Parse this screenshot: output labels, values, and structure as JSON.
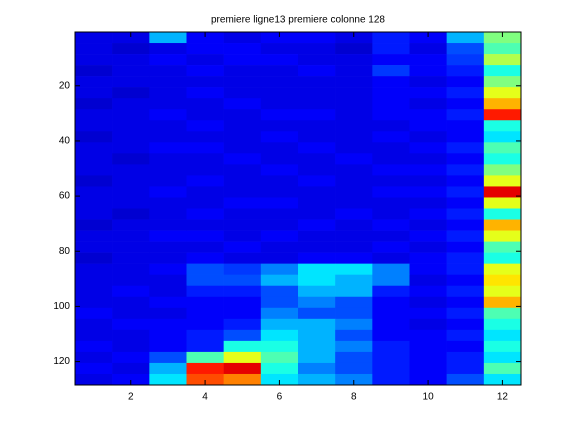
{
  "chart_data": {
    "type": "heatmap",
    "title": "premiere ligne13 premiere colonne 128",
    "colormap": "jet",
    "clim": [
      0,
      1
    ],
    "x": [
      1,
      2,
      3,
      4,
      5,
      6,
      7,
      8,
      9,
      10,
      11,
      12
    ],
    "y_edges": [
      0.5,
      4.5,
      8.5,
      12.5,
      16.5,
      20.5,
      24.5,
      28.5,
      32.5,
      36.5,
      40.5,
      44.5,
      48.5,
      52.5,
      56.5,
      60.5,
      64.5,
      68.5,
      72.5,
      76.5,
      80.5,
      84.5,
      88.5,
      92.5,
      96.5,
      100.5,
      104.5,
      108.5,
      112.5,
      116.5,
      120.5,
      124.5,
      128.5
    ],
    "z": [
      [
        0.1,
        0.1,
        0.3,
        0.12,
        0.1,
        0.12,
        0.12,
        0.1,
        0.15,
        0.12,
        0.3,
        0.5
      ],
      [
        0.1,
        0.08,
        0.1,
        0.12,
        0.12,
        0.1,
        0.1,
        0.08,
        0.15,
        0.1,
        0.2,
        0.45
      ],
      [
        0.1,
        0.1,
        0.12,
        0.1,
        0.12,
        0.12,
        0.1,
        0.1,
        0.12,
        0.12,
        0.18,
        0.55
      ],
      [
        0.08,
        0.1,
        0.1,
        0.12,
        0.1,
        0.1,
        0.12,
        0.1,
        0.18,
        0.12,
        0.15,
        0.4
      ],
      [
        0.1,
        0.1,
        0.1,
        0.1,
        0.1,
        0.1,
        0.1,
        0.1,
        0.12,
        0.1,
        0.12,
        0.5
      ],
      [
        0.1,
        0.08,
        0.1,
        0.12,
        0.1,
        0.1,
        0.1,
        0.1,
        0.12,
        0.12,
        0.15,
        0.6
      ],
      [
        0.08,
        0.1,
        0.1,
        0.1,
        0.12,
        0.1,
        0.1,
        0.1,
        0.12,
        0.1,
        0.12,
        0.7
      ],
      [
        0.1,
        0.1,
        0.12,
        0.1,
        0.1,
        0.12,
        0.12,
        0.1,
        0.12,
        0.12,
        0.15,
        0.85
      ],
      [
        0.1,
        0.1,
        0.1,
        0.12,
        0.1,
        0.1,
        0.1,
        0.1,
        0.1,
        0.12,
        0.12,
        0.4
      ],
      [
        0.08,
        0.1,
        0.1,
        0.1,
        0.1,
        0.12,
        0.1,
        0.1,
        0.12,
        0.1,
        0.12,
        0.35
      ],
      [
        0.1,
        0.1,
        0.12,
        0.12,
        0.1,
        0.1,
        0.12,
        0.1,
        0.1,
        0.12,
        0.15,
        0.45
      ],
      [
        0.1,
        0.08,
        0.1,
        0.1,
        0.12,
        0.1,
        0.1,
        0.12,
        0.1,
        0.1,
        0.12,
        0.4
      ],
      [
        0.1,
        0.1,
        0.1,
        0.1,
        0.1,
        0.12,
        0.1,
        0.1,
        0.12,
        0.12,
        0.15,
        0.5
      ],
      [
        0.08,
        0.1,
        0.1,
        0.12,
        0.1,
        0.1,
        0.12,
        0.1,
        0.1,
        0.1,
        0.12,
        0.6
      ],
      [
        0.1,
        0.1,
        0.12,
        0.1,
        0.1,
        0.1,
        0.1,
        0.1,
        0.12,
        0.12,
        0.15,
        0.9
      ],
      [
        0.1,
        0.1,
        0.1,
        0.1,
        0.12,
        0.12,
        0.1,
        0.1,
        0.1,
        0.1,
        0.12,
        0.6
      ],
      [
        0.1,
        0.08,
        0.1,
        0.12,
        0.1,
        0.1,
        0.1,
        0.12,
        0.1,
        0.12,
        0.15,
        0.4
      ],
      [
        0.08,
        0.1,
        0.1,
        0.1,
        0.1,
        0.1,
        0.12,
        0.1,
        0.12,
        0.1,
        0.12,
        0.7
      ],
      [
        0.1,
        0.1,
        0.12,
        0.12,
        0.1,
        0.12,
        0.1,
        0.1,
        0.1,
        0.12,
        0.15,
        0.6
      ],
      [
        0.1,
        0.1,
        0.1,
        0.1,
        0.12,
        0.1,
        0.1,
        0.1,
        0.12,
        0.1,
        0.12,
        0.45
      ],
      [
        0.08,
        0.1,
        0.1,
        0.12,
        0.1,
        0.1,
        0.12,
        0.12,
        0.1,
        0.12,
        0.15,
        0.4
      ],
      [
        0.1,
        0.1,
        0.12,
        0.2,
        0.18,
        0.25,
        0.35,
        0.35,
        0.25,
        0.12,
        0.15,
        0.6
      ],
      [
        0.1,
        0.1,
        0.1,
        0.2,
        0.2,
        0.3,
        0.35,
        0.3,
        0.25,
        0.1,
        0.12,
        0.65
      ],
      [
        0.1,
        0.12,
        0.1,
        0.15,
        0.15,
        0.2,
        0.3,
        0.3,
        0.15,
        0.12,
        0.15,
        0.6
      ],
      [
        0.1,
        0.1,
        0.12,
        0.12,
        0.12,
        0.2,
        0.25,
        0.2,
        0.12,
        0.1,
        0.12,
        0.7
      ],
      [
        0.12,
        0.1,
        0.1,
        0.12,
        0.12,
        0.25,
        0.2,
        0.2,
        0.12,
        0.12,
        0.15,
        0.45
      ],
      [
        0.1,
        0.12,
        0.12,
        0.12,
        0.15,
        0.3,
        0.3,
        0.25,
        0.12,
        0.1,
        0.12,
        0.4
      ],
      [
        0.1,
        0.1,
        0.12,
        0.15,
        0.2,
        0.35,
        0.3,
        0.2,
        0.12,
        0.12,
        0.15,
        0.35
      ],
      [
        0.12,
        0.1,
        0.12,
        0.15,
        0.4,
        0.4,
        0.3,
        0.25,
        0.15,
        0.12,
        0.12,
        0.4
      ],
      [
        0.1,
        0.12,
        0.2,
        0.45,
        0.6,
        0.45,
        0.3,
        0.2,
        0.15,
        0.12,
        0.15,
        0.35
      ],
      [
        0.12,
        0.1,
        0.3,
        0.85,
        0.9,
        0.4,
        0.25,
        0.2,
        0.15,
        0.12,
        0.15,
        0.45
      ],
      [
        0.1,
        0.12,
        0.35,
        0.8,
        0.75,
        0.35,
        0.3,
        0.25,
        0.15,
        0.12,
        0.2,
        0.35
      ]
    ],
    "xlim": [
      0.5,
      12.5
    ],
    "ylim": [
      0.5,
      128.5
    ],
    "xticks": [
      2,
      4,
      6,
      8,
      10,
      12
    ],
    "yticks": [
      20,
      40,
      60,
      80,
      100,
      120
    ],
    "y_reversed": true
  }
}
